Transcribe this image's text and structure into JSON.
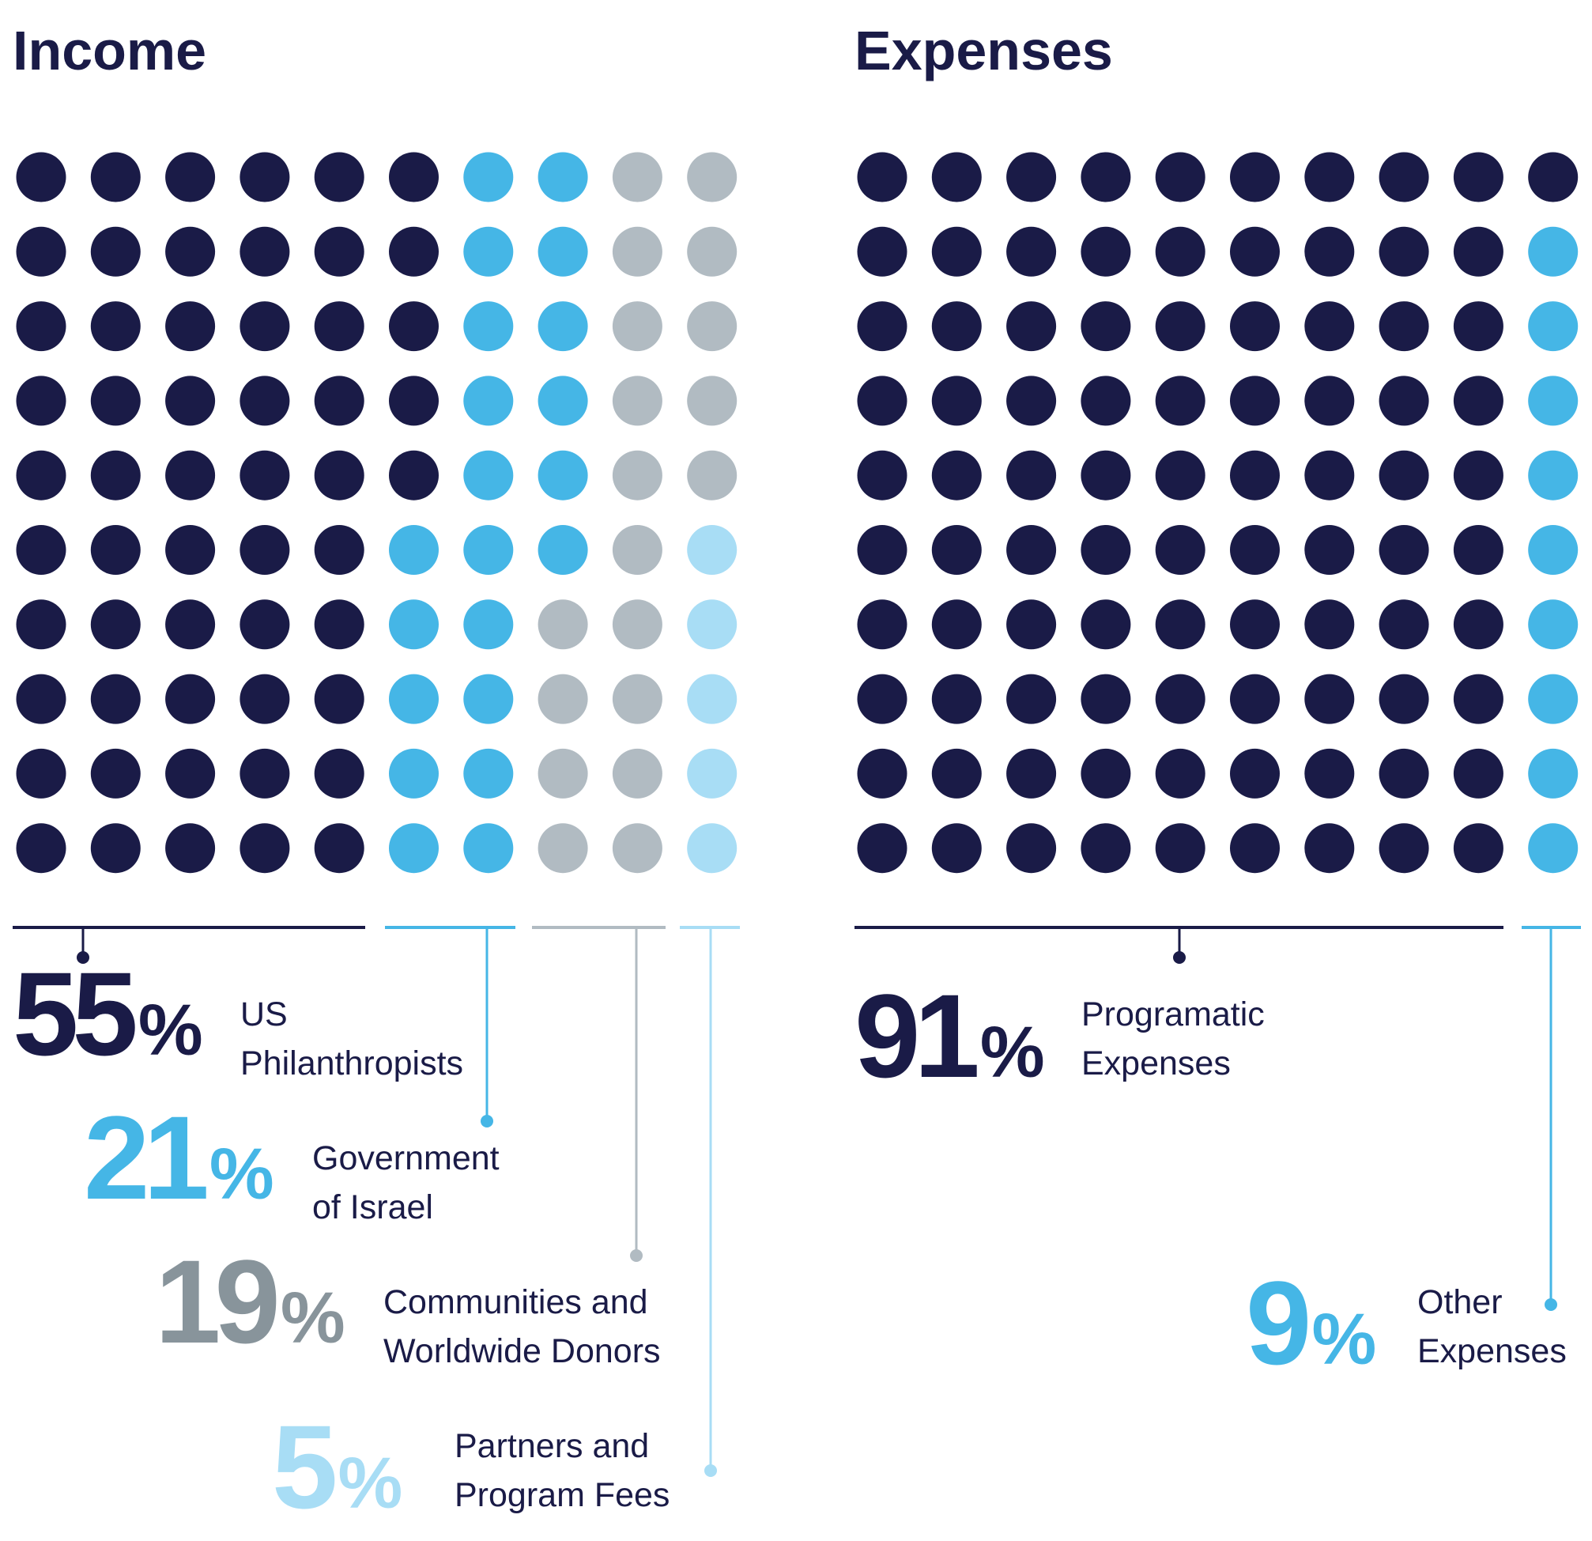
{
  "colors": {
    "navy": "#1a1b47",
    "blue": "#45b6e6",
    "gray": "#b1bbc2",
    "light_blue": "#a8ddf5",
    "gray_text": "#88949b"
  },
  "chart_data": [
    {
      "type": "waffle",
      "title": "Income",
      "grid": {
        "rows": 10,
        "cols": 10,
        "fill_order": "column-major"
      },
      "series": [
        {
          "name": "US Philanthropists",
          "value": 55,
          "pct_label": "55",
          "label_lines": [
            "US",
            "Philanthropists"
          ],
          "color_key": "navy",
          "number_color_key": "navy"
        },
        {
          "name": "Government of Israel",
          "value": 21,
          "pct_label": "21",
          "label_lines": [
            "Government",
            "of Israel"
          ],
          "color_key": "blue",
          "number_color_key": "blue"
        },
        {
          "name": "Communities and Worldwide Donors",
          "value": 19,
          "pct_label": "19",
          "label_lines": [
            "Communities and",
            "Worldwide Donors"
          ],
          "color_key": "gray",
          "number_color_key": "gray_text"
        },
        {
          "name": "Partners and Program Fees",
          "value": 5,
          "pct_label": "5",
          "label_lines": [
            "Partners and",
            "Program Fees"
          ],
          "color_key": "light_blue",
          "number_color_key": "light_blue"
        }
      ]
    },
    {
      "type": "waffle",
      "title": "Expenses",
      "grid": {
        "rows": 10,
        "cols": 10,
        "fill_order": "column-major"
      },
      "series": [
        {
          "name": "Programatic Expenses",
          "value": 91,
          "pct_label": "91",
          "label_lines": [
            "Programatic",
            "Expenses"
          ],
          "color_key": "navy",
          "number_color_key": "navy"
        },
        {
          "name": "Other Expenses",
          "value": 9,
          "pct_label": "9",
          "label_lines": [
            "Other",
            "Expenses"
          ],
          "color_key": "blue",
          "number_color_key": "blue"
        }
      ]
    }
  ],
  "percent_sign": "%"
}
